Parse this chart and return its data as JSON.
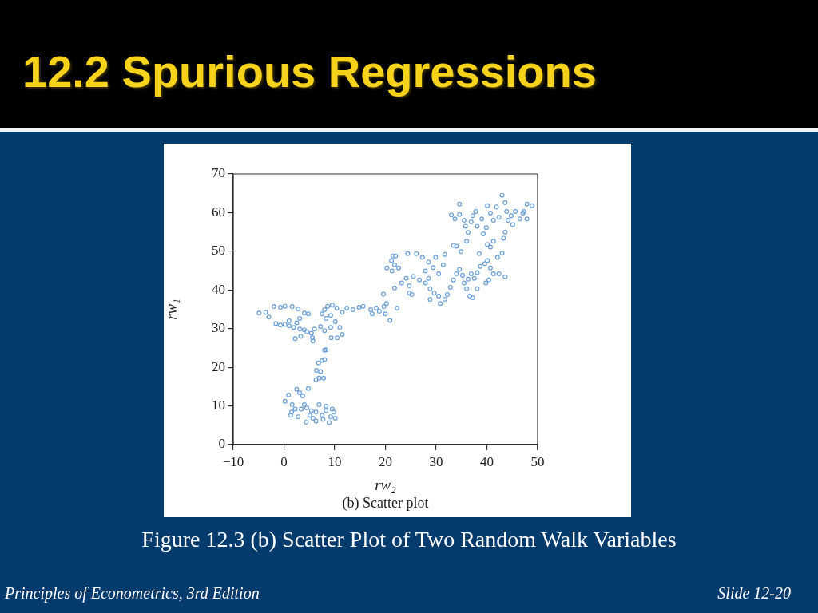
{
  "chart_data": {
    "type": "scatter",
    "title": "12.2 Spurious Regressions",
    "xlabel": "rw₂",
    "ylabel": "rw₁",
    "annotations": [
      "(b) Scatter plot",
      "Figure 12.3 (b) Scatter Plot of Two Random Walk Variables",
      "Principles of Econometrics, 3rd Edition",
      "Slide 12-20"
    ],
    "color": "#6b9fd8",
    "marker": "circle",
    "xlim": [
      -10,
      50
    ],
    "xticks": [
      {
        "value": -10,
        "label": "−10"
      },
      0,
      10,
      20,
      30,
      40,
      50
    ],
    "ylim": [
      0,
      70
    ],
    "yticks": [
      0,
      10,
      20,
      30,
      40,
      50,
      60,
      70
    ],
    "x": [
      0.2,
      0.9,
      1.6,
      1.5,
      2.5,
      3.1,
      3.7,
      4.8,
      4.0,
      4.5,
      5.4,
      6.3,
      6.9,
      7.5,
      8.3,
      9.2,
      9.8,
      10.1,
      8.9,
      6.3,
      4.4,
      2.8,
      2.2,
      3.4,
      5.1,
      5.7,
      7.7,
      8.3,
      9.5,
      1.3,
      6.3,
      6.9,
      7.8,
      6.4,
      7.2,
      6.8,
      7.5,
      8.0,
      8.3,
      8.0,
      5.7,
      5.6,
      -4.9,
      -3.6,
      -3.0,
      -2.0,
      -0.7,
      0.2,
      -1.6,
      -0.7,
      0.2,
      1.0,
      1.9,
      2.5,
      3.1,
      2.2,
      3.3,
      4.0,
      4.5,
      5.4,
      6.0,
      4.8,
      4.0,
      2.8,
      1.6,
      3.1,
      1.0,
      7.2,
      8.0,
      9.2,
      10.1,
      11.0,
      11.5,
      10.5,
      9.3,
      7.5,
      8.0,
      8.6,
      9.5,
      10.4,
      11.5,
      12.4,
      13.6,
      14.8,
      15.6,
      8.3,
      9.2,
      17.1,
      17.4,
      18.2,
      18.8,
      19.7,
      20.2,
      20.0,
      20.9,
      19.6,
      22.3,
      20.3,
      21.2,
      21.5,
      22.0,
      21.8,
      21.3,
      22.6,
      21.8,
      23.2,
      24.1,
      24.7,
      24.7,
      25.2,
      24.4,
      26.1,
      27.3,
      25.5,
      26.7,
      27.9,
      28.5,
      28.8,
      29.4,
      29.9,
      28.5,
      27.9,
      31.7,
      31.4,
      30.5,
      28.8,
      29.6,
      30.5,
      30.8,
      31.7,
      32.2,
      32.8,
      33.4,
      34.0,
      34.6,
      35.2,
      35.5,
      36.0,
      36.6,
      37.2,
      36.3,
      36.9,
      37.5,
      38.1,
      38.7,
      39.6,
      40.1,
      40.7,
      41.3,
      40.4,
      39.8,
      38.1,
      42.4,
      43.6,
      42.1,
      43.0,
      40.7,
      41.3,
      38.5,
      34.9,
      33.4,
      34.0,
      33.0,
      33.7,
      34.6,
      34.6,
      35.5,
      35.8,
      36.3,
      36.0,
      36.9,
      37.2,
      37.8,
      38.1,
      39.0,
      39.3,
      39.9,
      40.1,
      40.7,
      41.3,
      41.9,
      42.4,
      43.0,
      43.6,
      43.9,
      44.2,
      44.8,
      45.1,
      43.6,
      43.3,
      45.6,
      46.5,
      47.1,
      47.9,
      47.9,
      48.9,
      47.3,
      40.1
    ],
    "values": [
      11.2,
      12.8,
      10.3,
      8.4,
      14.3,
      13.4,
      12.6,
      14.5,
      10.3,
      9.5,
      8.8,
      8.4,
      10.3,
      7.6,
      8.8,
      7.2,
      8.4,
      6.8,
      5.7,
      6.1,
      5.8,
      7.2,
      9.2,
      9.2,
      7.6,
      6.8,
      6.5,
      9.9,
      9.2,
      7.6,
      16.8,
      17.2,
      17.2,
      19.2,
      18.9,
      21.1,
      21.8,
      22.0,
      24.5,
      24.4,
      26.8,
      27.6,
      34.0,
      34.2,
      33.0,
      35.7,
      35.5,
      35.8,
      31.3,
      30.9,
      31.1,
      30.7,
      30.3,
      31.5,
      29.9,
      27.4,
      28.0,
      29.7,
      29.2,
      28.8,
      29.9,
      33.8,
      34.0,
      35.1,
      35.7,
      32.6,
      32.0,
      30.5,
      29.5,
      30.3,
      31.8,
      30.3,
      28.5,
      27.6,
      27.6,
      33.8,
      34.9,
      35.8,
      36.1,
      35.3,
      34.2,
      35.3,
      34.9,
      35.5,
      35.8,
      32.6,
      33.4,
      34.9,
      33.8,
      35.3,
      34.5,
      35.7,
      36.5,
      33.8,
      32.1,
      38.9,
      35.3,
      45.7,
      47.6,
      48.8,
      48.8,
      46.5,
      44.9,
      45.7,
      40.5,
      41.8,
      43.0,
      41.1,
      39.2,
      38.8,
      49.4,
      49.4,
      48.4,
      43.5,
      42.6,
      41.8,
      43.0,
      40.3,
      45.8,
      48.4,
      47.2,
      44.9,
      49.2,
      46.5,
      44.2,
      37.6,
      39.2,
      38.4,
      36.5,
      37.6,
      38.8,
      40.7,
      42.6,
      44.2,
      45.3,
      43.8,
      41.8,
      40.3,
      38.4,
      38.0,
      42.8,
      44.2,
      43.0,
      44.5,
      46.1,
      46.8,
      47.6,
      45.7,
      44.2,
      42.6,
      41.8,
      40.3,
      44.2,
      43.4,
      48.4,
      49.5,
      51.1,
      52.6,
      49.4,
      49.9,
      51.5,
      51.3,
      59.4,
      58.4,
      62.2,
      59.5,
      58.0,
      56.5,
      54.9,
      52.6,
      57.6,
      59.2,
      60.3,
      56.5,
      58.4,
      54.5,
      56.1,
      61.8,
      59.9,
      58.0,
      61.5,
      58.8,
      64.5,
      62.6,
      60.3,
      58.0,
      59.2,
      56.9,
      55.0,
      53.4,
      60.3,
      58.4,
      59.9,
      58.4,
      62.2,
      61.8,
      60.3,
      51.8
    ]
  }
}
